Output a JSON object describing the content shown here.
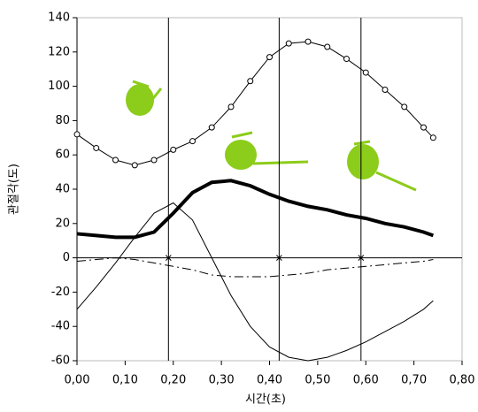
{
  "chart_data": {
    "type": "line",
    "xlabel": "시간(초)",
    "ylabel": "관절각(도)",
    "x": [
      0,
      0.04,
      0.08,
      0.12,
      0.16,
      0.2,
      0.24,
      0.28,
      0.32,
      0.36,
      0.4,
      0.44,
      0.48,
      0.52,
      0.56,
      0.6,
      0.64,
      0.68,
      0.72,
      0.74
    ],
    "series": [
      {
        "style": "circles",
        "color": "#000000",
        "values": [
          72,
          64,
          57,
          54,
          57,
          63,
          68,
          76,
          88,
          103,
          117,
          125,
          126,
          123,
          116,
          108,
          98,
          88,
          76,
          70
        ]
      },
      {
        "style": "thick",
        "color": "#000000",
        "values": [
          14,
          13,
          12,
          12,
          15,
          26,
          38,
          44,
          45,
          42,
          37,
          33,
          30,
          28,
          25,
          23,
          20,
          18,
          15,
          13
        ]
      },
      {
        "style": "thin",
        "color": "#000000",
        "values": [
          -30,
          -17,
          -3,
          12,
          26,
          32,
          22,
          0,
          -22,
          -40,
          -52,
          -58,
          -60,
          -58,
          -54,
          -49,
          -43,
          -37,
          -30,
          -25
        ]
      },
      {
        "style": "dashdot",
        "color": "#000000",
        "values": [
          -2,
          -1,
          0,
          -1,
          -3,
          -5,
          -7,
          -10,
          -11,
          -11,
          -11,
          -10,
          -9,
          -7,
          -6,
          -5,
          -4,
          -3,
          -2,
          -1
        ]
      }
    ],
    "phase_lines": [
      0.19,
      0.42,
      0.59
    ],
    "xlim": [
      0,
      0.8
    ],
    "xticks": [
      {
        "value": 0,
        "label": "0,00"
      },
      {
        "value": 0.1,
        "label": "0,10"
      },
      {
        "value": 0.2,
        "label": "0,20"
      },
      {
        "value": 0.3,
        "label": "0,30"
      },
      {
        "value": 0.4,
        "label": "0,40"
      },
      {
        "value": 0.5,
        "label": "0,50"
      },
      {
        "value": 0.6,
        "label": "0,60"
      },
      {
        "value": 0.7,
        "label": "0,70"
      },
      {
        "value": 0.8,
        "label": "0,80"
      }
    ],
    "ylim": [
      -60,
      140
    ],
    "yticks": [
      -60,
      -40,
      -20,
      0,
      20,
      40,
      60,
      80,
      100,
      120,
      140
    ]
  }
}
